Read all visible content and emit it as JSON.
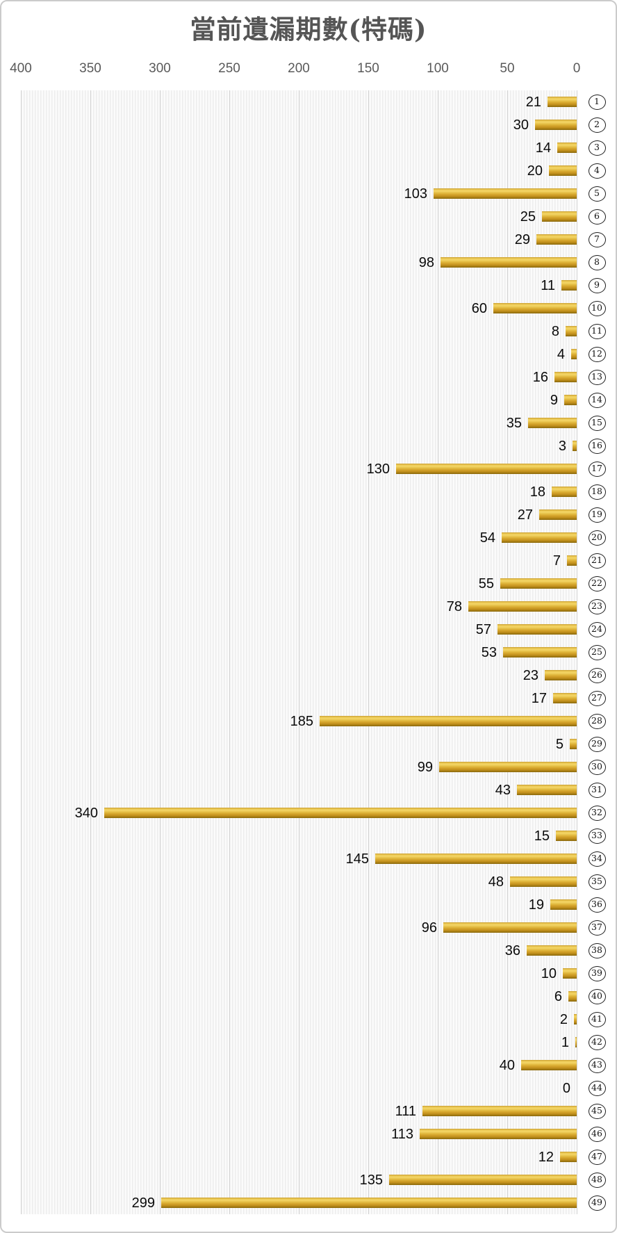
{
  "chart_data": {
    "type": "bar",
    "orientation": "horizontal",
    "title": "當前遺漏期數(特碼)",
    "legend": "none",
    "value_labels_shown": true,
    "x_axis": {
      "position": "top",
      "reversed": true,
      "min": 0,
      "max": 400,
      "ticks": [
        400,
        350,
        300,
        250,
        200,
        150,
        100,
        50,
        0
      ],
      "major_grid_interval": 50,
      "minor_stripes": true
    },
    "categories": [
      "①",
      "②",
      "③",
      "④",
      "⑤",
      "⑥",
      "⑦",
      "⑧",
      "⑨",
      "⑩",
      "⑪",
      "⑫",
      "⑬",
      "⑭",
      "⑮",
      "⑯",
      "⑰",
      "⑱",
      "⑲",
      "⑳",
      "㉑",
      "㉒",
      "㉓",
      "㉔",
      "㉕",
      "㉖",
      "㉗",
      "㉘",
      "㉙",
      "㉚",
      "㉛",
      "㉜",
      "㉝",
      "㉞",
      "㉟",
      "㊱",
      "㊲",
      "㊳",
      "㊴",
      "㊵",
      "㊶",
      "㊷",
      "㊸",
      "㊹",
      "㊺",
      "㊻",
      "㊼",
      "㊽",
      "㊾"
    ],
    "category_style": "circled-number",
    "values": [
      21,
      30,
      14,
      20,
      103,
      25,
      29,
      98,
      11,
      60,
      8,
      4,
      16,
      9,
      35,
      3,
      130,
      18,
      27,
      54,
      7,
      55,
      78,
      57,
      53,
      23,
      17,
      185,
      5,
      99,
      43,
      340,
      15,
      145,
      48,
      19,
      96,
      36,
      10,
      6,
      2,
      1,
      40,
      0,
      111,
      113,
      12,
      135,
      299
    ]
  },
  "style": {
    "bar_color": "#E0B33A",
    "bar_gradient_top": "#C99F33",
    "bar_gradient_highlight": "#F3D667",
    "bar_gradient_bottom": "#8A680E",
    "title_color": "#555555",
    "axis_label_color": "#595959",
    "value_label_color": "#0A0A0A",
    "major_gridline_color": "#D2D2D2",
    "stripe_color": "#EDEDED",
    "frame_border_color": "#CBCBCB",
    "background_color": "#FFFFFF"
  }
}
